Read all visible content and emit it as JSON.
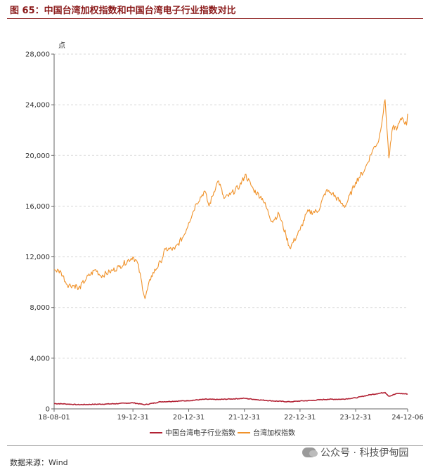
{
  "figure": {
    "title": "图 65：中国台湾加权指数和中国台湾电子行业指数对比",
    "source": "数据来源：Wind",
    "watermark": "公众号 · 科技伊甸园",
    "watermark_icon": "wechat-icon"
  },
  "chart_data": {
    "type": "line",
    "title": "",
    "ylabel": "点",
    "xlabel": "",
    "ylim": [
      0,
      28000
    ],
    "y_ticks": [
      0,
      4000,
      8000,
      12000,
      16000,
      20000,
      24000,
      28000
    ],
    "y_tick_labels": [
      "0",
      "4,000",
      "8,000",
      "12,000",
      "16,000",
      "20,000",
      "24,000",
      "28,000"
    ],
    "x_range": [
      "2018-08-01",
      "2024-12-06"
    ],
    "x_ticks": [
      "2018-08-01",
      "2019-12-31",
      "2020-12-31",
      "2021-12-31",
      "2022-12-31",
      "2023-12-31",
      "2024-12-06"
    ],
    "x_tick_labels": [
      "18-08-01",
      "19-12-31",
      "20-12-31",
      "21-12-31",
      "22-12-31",
      "23-12-31",
      "24-12-06"
    ],
    "grid": "horizontal dashed",
    "legend_position": "bottom",
    "series": [
      {
        "name": "中国台湾电子行业指数",
        "color": "#b22234",
        "x": [
          "2018-08-01",
          "2018-10-15",
          "2019-01-02",
          "2019-04-15",
          "2019-07-01",
          "2019-10-01",
          "2019-12-31",
          "2020-03-19",
          "2020-06-30",
          "2020-12-31",
          "2021-04-15",
          "2021-07-15",
          "2021-12-31",
          "2022-04-01",
          "2022-07-01",
          "2022-10-25",
          "2022-12-31",
          "2023-04-01",
          "2023-07-01",
          "2023-10-01",
          "2023-12-31",
          "2024-04-01",
          "2024-07-11",
          "2024-08-05",
          "2024-10-01",
          "2024-12-06"
        ],
        "values": [
          420,
          390,
          330,
          360,
          380,
          420,
          480,
          330,
          560,
          650,
          760,
          740,
          830,
          720,
          630,
          560,
          620,
          680,
          760,
          760,
          870,
          1110,
          1300,
          1000,
          1220,
          1180
        ]
      },
      {
        "name": "台湾加权指数",
        "color": "#f0922a",
        "x": [
          "2018-08-01",
          "2018-09-15",
          "2018-10-26",
          "2018-12-28",
          "2019-01-04",
          "2019-03-01",
          "2019-04-30",
          "2019-06-03",
          "2019-07-31",
          "2019-10-01",
          "2019-12-31",
          "2020-01-31",
          "2020-03-19",
          "2020-04-30",
          "2020-06-30",
          "2020-07-31",
          "2020-09-30",
          "2020-11-30",
          "2020-12-31",
          "2021-02-18",
          "2021-04-15",
          "2021-05-13",
          "2021-06-30",
          "2021-07-15",
          "2021-08-20",
          "2021-09-30",
          "2021-11-30",
          "2021-12-31",
          "2022-01-05",
          "2022-03-01",
          "2022-04-29",
          "2022-06-30",
          "2022-08-15",
          "2022-09-30",
          "2022-10-25",
          "2022-12-31",
          "2023-02-15",
          "2023-04-28",
          "2023-06-20",
          "2023-07-31",
          "2023-09-30",
          "2023-10-25",
          "2023-12-31",
          "2024-02-29",
          "2024-04-19",
          "2024-05-31",
          "2024-07-11",
          "2024-08-05",
          "2024-08-30",
          "2024-09-30",
          "2024-10-31",
          "2024-11-29",
          "2024-12-06"
        ],
        "values": [
          11000,
          10800,
          9800,
          9700,
          9400,
          10300,
          11000,
          10500,
          10800,
          11200,
          12000,
          11500,
          8700,
          10500,
          11600,
          12600,
          12600,
          13700,
          14700,
          16200,
          17200,
          16000,
          17700,
          18000,
          16600,
          16900,
          17600,
          18300,
          18500,
          17300,
          16600,
          14800,
          15400,
          13700,
          12700,
          14100,
          15500,
          15600,
          17200,
          17000,
          16200,
          16000,
          17900,
          18900,
          20400,
          21200,
          24400,
          19800,
          22200,
          22200,
          23000,
          22400,
          23300
        ]
      }
    ]
  }
}
